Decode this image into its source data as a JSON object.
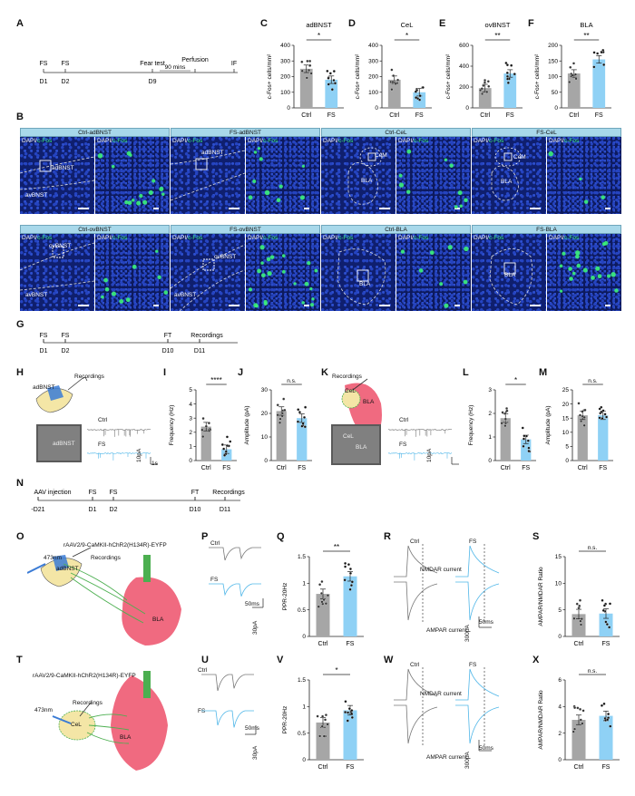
{
  "panel_letters": [
    "A",
    "B",
    "C",
    "D",
    "E",
    "F",
    "G",
    "H",
    "I",
    "J",
    "K",
    "L",
    "M",
    "N",
    "O",
    "P",
    "Q",
    "R",
    "S",
    "T",
    "U",
    "V",
    "W",
    "X"
  ],
  "timeline_A": {
    "events_top": [
      "FS",
      "FS",
      "Fear test",
      "Perfusion",
      "IF"
    ],
    "interval": "90 mins",
    "days": [
      "D1",
      "D2",
      "D9"
    ]
  },
  "timeline_G": {
    "events_top": [
      "FS",
      "FS",
      "FT",
      "Recordings"
    ],
    "days": [
      "D1",
      "D2",
      "D10",
      "D11"
    ]
  },
  "timeline_N": {
    "events_top": [
      "AAV injection",
      "FS",
      "FS",
      "FT",
      "Recordings"
    ],
    "days": [
      "-D21",
      "D1",
      "D2",
      "D10",
      "D11"
    ]
  },
  "groups": [
    "Ctrl",
    "FS"
  ],
  "colors": {
    "ctrl": "#a6a6a6",
    "fs": "#8fd1f5",
    "fs_trace": "#4fb6e8",
    "bla": "#f06a80",
    "header": "#a8d8ea"
  },
  "micro_headers_row1": [
    "Ctrl-adBNST",
    "FS-adBNST",
    "Ctrl-CeL",
    "FS-CeL"
  ],
  "micro_headers_row2": [
    "Ctrl-ovBNST",
    "FS-ovBNST",
    "Ctrl-BLA",
    "FS-BLA"
  ],
  "stain": {
    "dapi": "DAPI/",
    "cfos": "c-Fos"
  },
  "region_labels": {
    "adbnst": "adBNST",
    "avbnst": "avBNST",
    "ovbnst": "ovBNST",
    "cem": "CeM",
    "bla": "BLA",
    "cel": "CeL"
  },
  "schematic": {
    "recordings": "Recordings",
    "laser": "473nm",
    "virus": "rAAV2/9-CaMKII-hChR2(H134R)-EYFP",
    "nmdar": "NMDAR current",
    "ampar": "AMPAR current",
    "ctrl": "Ctrl",
    "fs": "FS"
  },
  "scalebars": {
    "s1": "1s",
    "pa10": "10pA",
    "ms50": "50ms",
    "pa30": "30pA",
    "pa300": "300pA"
  },
  "significance": {
    "one": "*",
    "two": "**",
    "four": "****",
    "ns": "n.s."
  },
  "chart_data": [
    {
      "panel": "C",
      "type": "bar",
      "title": "adBNST",
      "ylabel": "c-Fos+ cells/mm²",
      "categories": [
        "Ctrl",
        "FS"
      ],
      "values": [
        250,
        180
      ],
      "ylim": [
        0,
        400
      ],
      "yticks": [
        0,
        100,
        200,
        300,
        400
      ],
      "sig": "*"
    },
    {
      "panel": "D",
      "type": "bar",
      "title": "CeL",
      "ylabel": "c-Fos+ cells/mm²",
      "categories": [
        "Ctrl",
        "FS"
      ],
      "values": [
        180,
        100
      ],
      "ylim": [
        0,
        400
      ],
      "yticks": [
        0,
        100,
        200,
        300,
        400
      ],
      "sig": "*"
    },
    {
      "panel": "E",
      "type": "bar",
      "title": "ovBNST",
      "ylabel": "c-Fos+ cells/mm²",
      "categories": [
        "Ctrl",
        "FS"
      ],
      "values": [
        190,
        330
      ],
      "ylim": [
        0,
        600
      ],
      "yticks": [
        0,
        200,
        400,
        600
      ],
      "sig": "**"
    },
    {
      "panel": "F",
      "type": "bar",
      "title": "BLA",
      "ylabel": "c-Fos+ cells/mm²",
      "categories": [
        "Ctrl",
        "FS"
      ],
      "values": [
        110,
        155
      ],
      "ylim": [
        0,
        200
      ],
      "yticks": [
        0,
        50,
        100,
        150,
        200
      ],
      "sig": "**"
    },
    {
      "panel": "I",
      "type": "bar",
      "ylabel": "Frequency (Hz)",
      "categories": [
        "Ctrl",
        "FS"
      ],
      "values": [
        2.4,
        0.8
      ],
      "ylim": [
        0,
        5
      ],
      "yticks": [
        0,
        1,
        2,
        3,
        4,
        5
      ],
      "sig": "****"
    },
    {
      "panel": "J",
      "type": "bar",
      "ylabel": "Amplitude (pA)",
      "categories": [
        "Ctrl",
        "FS"
      ],
      "values": [
        21,
        18
      ],
      "ylim": [
        0,
        30
      ],
      "yticks": [
        0,
        10,
        20,
        30
      ],
      "sig": "n.s."
    },
    {
      "panel": "L",
      "type": "bar",
      "ylabel": "Frequency (Hz)",
      "categories": [
        "Ctrl",
        "FS"
      ],
      "values": [
        1.8,
        0.9
      ],
      "ylim": [
        0,
        3
      ],
      "yticks": [
        0,
        1,
        2,
        3
      ],
      "sig": "*"
    },
    {
      "panel": "M",
      "type": "bar",
      "ylabel": "Amplitude (pA)",
      "categories": [
        "Ctrl",
        "FS"
      ],
      "values": [
        16,
        16
      ],
      "ylim": [
        0,
        25
      ],
      "yticks": [
        0,
        5,
        10,
        15,
        20,
        25
      ],
      "sig": "n.s."
    },
    {
      "panel": "Q",
      "type": "bar",
      "ylabel": "PPR-20Hz",
      "categories": [
        "Ctrl",
        "FS"
      ],
      "values": [
        0.8,
        1.13
      ],
      "ylim": [
        0,
        1.5
      ],
      "yticks": [
        0.0,
        0.5,
        1.0,
        1.5
      ],
      "sig": "**"
    },
    {
      "panel": "S",
      "type": "bar",
      "ylabel": "AMPAR/NMDAR Ratio",
      "categories": [
        "Ctrl",
        "FS"
      ],
      "values": [
        4.2,
        4.3
      ],
      "ylim": [
        0,
        15
      ],
      "yticks": [
        0,
        5,
        10,
        15
      ],
      "sig": "n.s."
    },
    {
      "panel": "V",
      "type": "bar",
      "ylabel": "PPR-20Hz",
      "categories": [
        "Ctrl",
        "FS"
      ],
      "values": [
        0.7,
        0.93
      ],
      "ylim": [
        0,
        1.5
      ],
      "yticks": [
        0.0,
        0.5,
        1.0,
        1.5
      ],
      "sig": "*"
    },
    {
      "panel": "X",
      "type": "bar",
      "ylabel": "AMPAR/NMDAR Ratio",
      "categories": [
        "Ctrl",
        "FS"
      ],
      "values": [
        3.0,
        3.3
      ],
      "ylim": [
        0,
        6
      ],
      "yticks": [
        0,
        2,
        4,
        6
      ],
      "sig": "n.s."
    }
  ]
}
